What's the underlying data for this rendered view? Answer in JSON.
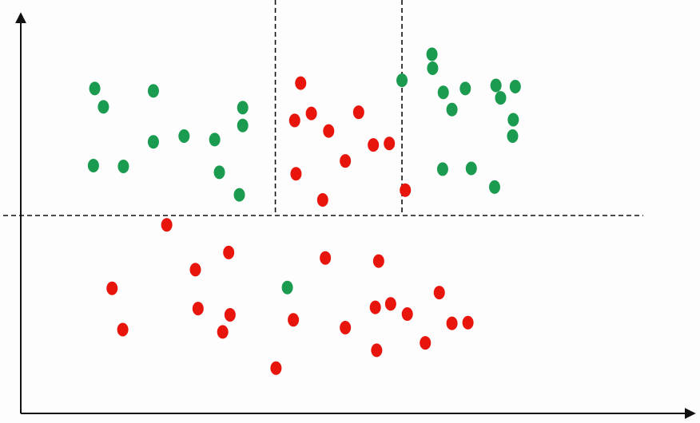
{
  "chart_data": {
    "type": "scatter",
    "title": "",
    "xlabel": "",
    "ylabel": "",
    "xlim": [
      0,
      100
    ],
    "ylim": [
      0,
      100
    ],
    "grid": false,
    "legend": "none",
    "colors": {
      "green": "#1a9b4f",
      "red": "#e8150d",
      "axis": "#111111",
      "split_line": "#111111"
    },
    "splits": {
      "horizontal": {
        "y": 50
      },
      "vertical": [
        {
          "x": 38.2,
          "from_y": 50,
          "to_y": 100
        },
        {
          "x": 57.2,
          "from_y": 50,
          "to_y": 100
        }
      ]
    },
    "series": [
      {
        "class": "green",
        "points": [
          [
            11.1,
            82.6
          ],
          [
            12.4,
            77.9
          ],
          [
            19.9,
            82.0
          ],
          [
            15.4,
            62.6
          ],
          [
            10.9,
            62.8
          ],
          [
            19.9,
            68.9
          ],
          [
            24.5,
            70.4
          ],
          [
            29.1,
            69.5
          ],
          [
            29.8,
            61.1
          ],
          [
            33.3,
            77.7
          ],
          [
            33.3,
            73.1
          ],
          [
            32.8,
            55.3
          ],
          [
            40.0,
            31.5
          ],
          [
            57.2,
            84.7
          ],
          [
            61.7,
            91.4
          ],
          [
            61.8,
            87.8
          ],
          [
            63.4,
            81.6
          ],
          [
            64.7,
            77.2
          ],
          [
            66.7,
            82.6
          ],
          [
            71.3,
            83.4
          ],
          [
            72.0,
            80.2
          ],
          [
            74.2,
            83.1
          ],
          [
            73.9,
            74.6
          ],
          [
            73.8,
            70.4
          ],
          [
            63.3,
            61.9
          ],
          [
            67.6,
            62.1
          ],
          [
            71.1,
            57.3
          ]
        ]
      },
      {
        "class": "red",
        "points": [
          [
            42.0,
            84.0
          ],
          [
            43.6,
            76.2
          ],
          [
            41.1,
            74.4
          ],
          [
            46.2,
            71.7
          ],
          [
            50.7,
            76.5
          ],
          [
            48.7,
            64.0
          ],
          [
            52.9,
            68.1
          ],
          [
            55.3,
            68.5
          ],
          [
            41.3,
            60.7
          ],
          [
            45.3,
            54.0
          ],
          [
            57.7,
            56.5
          ],
          [
            21.9,
            47.6
          ],
          [
            31.2,
            40.5
          ],
          [
            26.2,
            36.1
          ],
          [
            45.7,
            39.1
          ],
          [
            53.7,
            38.3
          ],
          [
            13.7,
            31.3
          ],
          [
            26.6,
            26.1
          ],
          [
            31.4,
            24.5
          ],
          [
            15.3,
            20.7
          ],
          [
            30.3,
            20.1
          ],
          [
            40.9,
            23.2
          ],
          [
            53.2,
            26.4
          ],
          [
            55.5,
            27.3
          ],
          [
            62.8,
            30.2
          ],
          [
            58.0,
            24.7
          ],
          [
            48.7,
            21.2
          ],
          [
            53.4,
            15.4
          ],
          [
            64.7,
            22.3
          ],
          [
            60.7,
            17.3
          ],
          [
            67.1,
            22.5
          ],
          [
            38.3,
            10.8
          ]
        ]
      }
    ]
  }
}
